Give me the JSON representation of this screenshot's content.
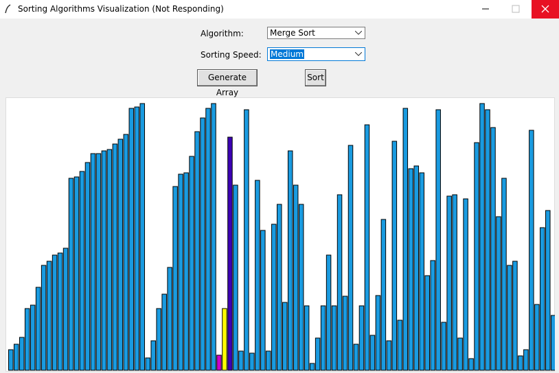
{
  "window": {
    "title": "Sorting Algorithms Visualization (Not Responding)"
  },
  "controls": {
    "algorithm_label": "Algorithm:",
    "algorithm_value": "Merge Sort",
    "speed_label": "Sorting Speed:",
    "speed_value": "Medium",
    "generate_button": "Generate Array",
    "sort_button": "Sort"
  },
  "chart_data": {
    "type": "bar",
    "values": [
      30,
      38,
      48,
      90,
      95,
      121,
      153,
      159,
      168,
      171,
      178,
      280,
      282,
      290,
      303,
      316,
      316,
      320,
      322,
      330,
      337,
      344,
      382,
      384,
      389,
      18,
      43,
      90,
      111,
      150,
      268,
      286,
      288,
      312,
      348,
      368,
      382,
      389,
      22,
      90,
      340,
      270,
      28,
      380,
      25,
      277,
      204,
      28,
      213,
      242,
      99,
      320,
      270,
      242,
      94,
      10,
      47,
      94,
      168,
      94,
      256,
      108,
      328,
      38,
      94,
      358,
      51,
      109,
      220,
      43,
      334,
      73,
      382,
      294,
      298,
      288,
      138,
      160,
      380,
      70,
      254,
      256,
      47,
      250,
      17,
      332,
      389,
      380,
      354,
      224,
      280,
      153,
      159,
      21,
      30,
      350,
      96,
      208,
      233,
      80
    ],
    "colors": [
      "#1a9be0",
      "#1a9be0",
      "#1a9be0",
      "#1a9be0",
      "#1a9be0",
      "#1a9be0",
      "#1a9be0",
      "#1a9be0",
      "#1a9be0",
      "#1a9be0",
      "#1a9be0",
      "#1a9be0",
      "#1a9be0",
      "#1a9be0",
      "#1a9be0",
      "#1a9be0",
      "#1a9be0",
      "#1a9be0",
      "#1a9be0",
      "#1a9be0",
      "#1a9be0",
      "#1a9be0",
      "#1a9be0",
      "#1a9be0",
      "#1a9be0",
      "#1a9be0",
      "#1a9be0",
      "#1a9be0",
      "#1a9be0",
      "#1a9be0",
      "#1a9be0",
      "#1a9be0",
      "#1a9be0",
      "#1a9be0",
      "#1a9be0",
      "#1a9be0",
      "#1a9be0",
      "#1a9be0",
      "#cc00cc",
      "#ffff00",
      "#3c00b4",
      "#1a9be0",
      "#1a9be0",
      "#1a9be0",
      "#1a9be0",
      "#1a9be0",
      "#1a9be0",
      "#1a9be0",
      "#1a9be0",
      "#1a9be0",
      "#1a9be0",
      "#1a9be0",
      "#1a9be0",
      "#1a9be0",
      "#1a9be0",
      "#1a9be0",
      "#1a9be0",
      "#1a9be0",
      "#1a9be0",
      "#1a9be0",
      "#1a9be0",
      "#1a9be0",
      "#1a9be0",
      "#1a9be0",
      "#1a9be0",
      "#1a9be0",
      "#1a9be0",
      "#1a9be0",
      "#1a9be0",
      "#1a9be0",
      "#1a9be0",
      "#1a9be0",
      "#1a9be0",
      "#1a9be0",
      "#1a9be0",
      "#1a9be0",
      "#1a9be0",
      "#1a9be0",
      "#1a9be0",
      "#1a9be0",
      "#1a9be0",
      "#1a9be0",
      "#1a9be0",
      "#1a9be0",
      "#1a9be0",
      "#1a9be0",
      "#1a9be0",
      "#1a9be0",
      "#1a9be0",
      "#1a9be0",
      "#1a9be0",
      "#1a9be0",
      "#1a9be0",
      "#1a9be0",
      "#1a9be0",
      "#1a9be0",
      "#1a9be0",
      "#1a9be0",
      "#1a9be0",
      "#1a9be0"
    ]
  }
}
